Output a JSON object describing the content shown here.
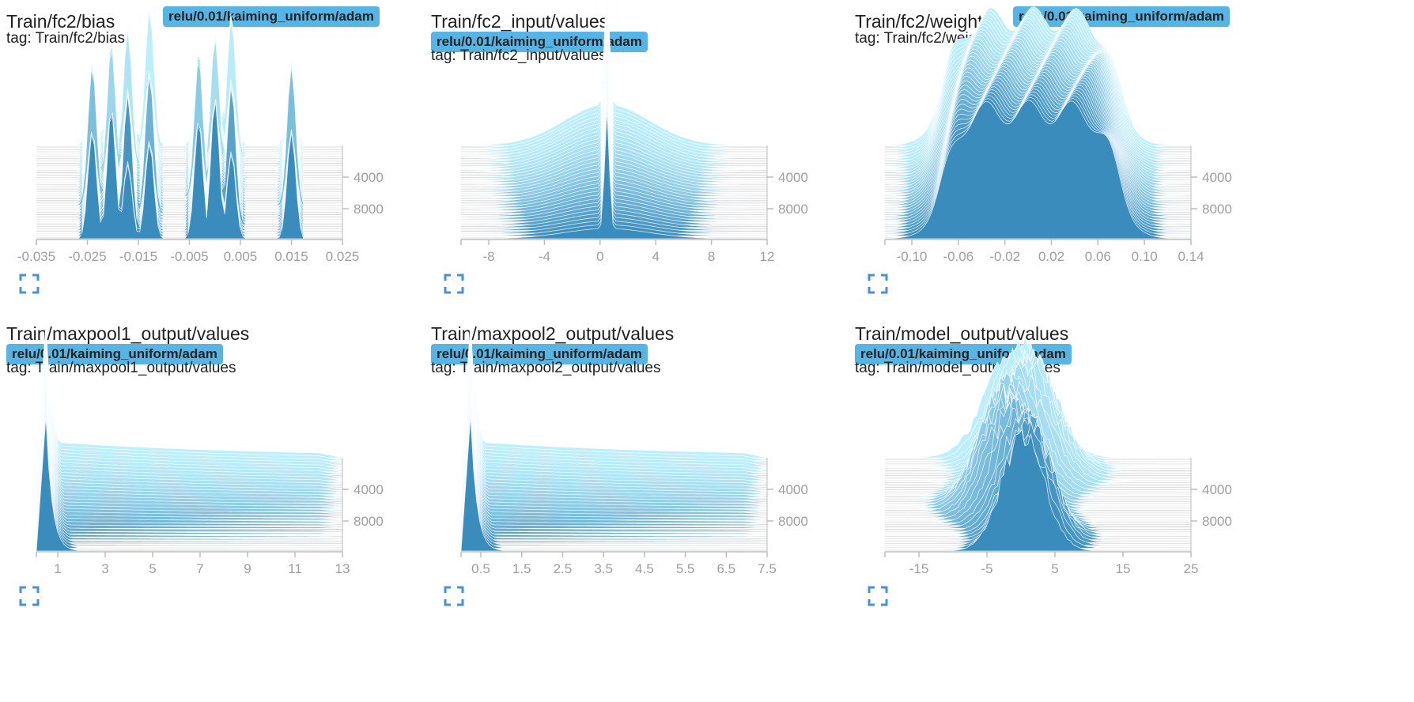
{
  "panels": [
    {
      "title": "Train/fc2/bias",
      "run": "relu/0.01/kaiming_uniform/adam",
      "tag": "tag: Train/fc2/bias",
      "badge_inline": true,
      "x_ticks": [
        "-0.035",
        "-0.025",
        "-0.015",
        "-0.005",
        "0.005",
        "0.015",
        "0.025"
      ],
      "y_ticks": [
        "4000",
        "8000"
      ],
      "shape": "bias"
    },
    {
      "title": "Train/fc2_input/values",
      "run": "relu/0.01/kaiming_uniform/adam",
      "tag": "tag: Train/fc2_input/values",
      "badge_inline": false,
      "x_ticks": [
        "-8",
        "-4",
        "0",
        "4",
        "8",
        "12"
      ],
      "y_ticks": [
        "4000",
        "8000"
      ],
      "shape": "spike"
    },
    {
      "title": "Train/fc2/weight",
      "run": "relu/0.01/kaiming_uniform/adam",
      "tag": "tag: Train/fc2/weight",
      "badge_inline": true,
      "x_ticks": [
        "-0.10",
        "-0.06",
        "-0.02",
        "0.02",
        "0.06",
        "0.10",
        "0.14"
      ],
      "y_ticks": [
        "4000",
        "8000"
      ],
      "shape": "plateau"
    },
    {
      "title": "Train/maxpool1_output/values",
      "run": "relu/0.01/kaiming_uniform/adam",
      "tag": "tag: Train/maxpool1_output/values",
      "badge_inline": false,
      "x_ticks": [
        "1",
        "3",
        "5",
        "7",
        "9",
        "11",
        "13"
      ],
      "y_ticks": [
        "4000",
        "8000"
      ],
      "shape": "decay"
    },
    {
      "title": "Train/maxpool2_output/values",
      "run": "relu/0.01/kaiming_uniform/adam",
      "tag": "tag: Train/maxpool2_output/values",
      "badge_inline": false,
      "x_ticks": [
        "0.5",
        "1.5",
        "2.5",
        "3.5",
        "4.5",
        "5.5",
        "6.5",
        "7.5"
      ],
      "y_ticks": [
        "4000",
        "8000"
      ],
      "shape": "decay"
    },
    {
      "title": "Train/model_output/values",
      "run": "relu/0.01/kaiming_uniform/adam",
      "tag": "tag: Train/model_output/values",
      "badge_inline": false,
      "x_ticks": [
        "-15",
        "-5",
        "5",
        "15",
        "25"
      ],
      "y_ticks": [
        "4000",
        "8000"
      ],
      "shape": "bell"
    }
  ],
  "icons": {
    "expand": "fullscreen-icon"
  },
  "colors": {
    "badge": "#57b5e6",
    "front": "#3a8cbc",
    "back": "#bdeefc",
    "axis": "#bdbdbd",
    "tick_text": "#9e9e9e",
    "expand": "#4a90d9"
  }
}
